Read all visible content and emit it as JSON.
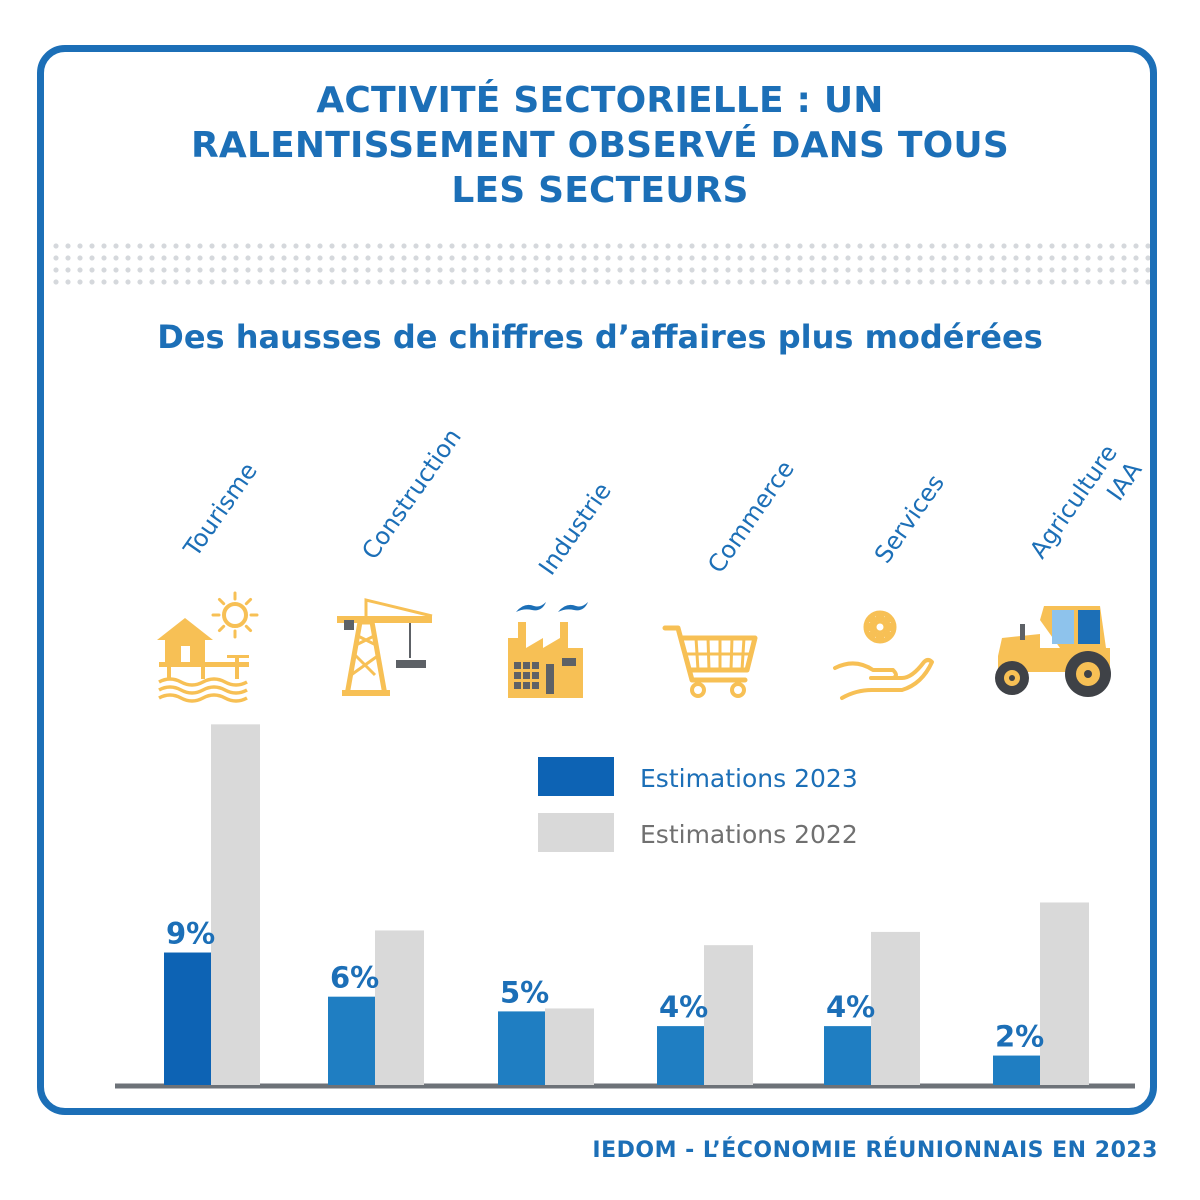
{
  "title_lines": [
    "ACTIVITÉ SECTORIELLE : UN",
    "RALENTISSEMENT OBSERVÉ DANS TOUS",
    "LES SECTEURS"
  ],
  "subtitle": "Des hausses de chiffres d’affaires plus modérées",
  "footer": "IEDOM - L’ÉCONOMIE RÉUNIONNAIS EN 2023",
  "colors": {
    "brand": "#1c6fb7",
    "series_2023": "#1f7ec2",
    "series_2023_highlight": "#0d63b4",
    "series_2022": "#d9d9d9",
    "icon": "#f7c055",
    "axis": "#6d7278"
  },
  "chart_data": {
    "type": "bar",
    "categories": [
      {
        "lines": [
          "Tourisme"
        ],
        "icon": "beach-house-icon"
      },
      {
        "lines": [
          "Construction"
        ],
        "icon": "crane-icon"
      },
      {
        "lines": [
          "Industrie"
        ],
        "icon": "factory-icon"
      },
      {
        "lines": [
          "Commerce"
        ],
        "icon": "shopping-cart-icon"
      },
      {
        "lines": [
          "Services"
        ],
        "icon": "gear-hand-icon"
      },
      {
        "lines": [
          "Agriculture",
          "IAA"
        ],
        "icon": "tractor-icon"
      }
    ],
    "series": [
      {
        "name": "Estimations 2023",
        "values": [
          9,
          6,
          5,
          4,
          4,
          2
        ],
        "labels": [
          "9%",
          "6%",
          "5%",
          "4%",
          "4%",
          "2%"
        ]
      },
      {
        "name": "Estimations 2022",
        "values": [
          24.5,
          10.5,
          5.2,
          9.5,
          10.4,
          12.4
        ]
      }
    ],
    "legend_position": "center-right",
    "ylim": [
      0,
      25
    ],
    "grid": false
  }
}
